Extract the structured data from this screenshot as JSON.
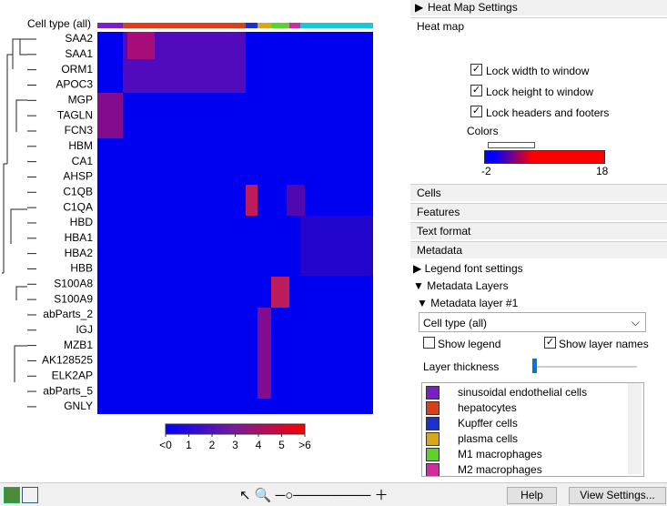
{
  "heatmap": {
    "column_header": "Cell type (all)",
    "genes": [
      "SAA2",
      "SAA1",
      "ORM1",
      "APOC3",
      "MGP",
      "TAGLN",
      "FCN3",
      "HBM",
      "CA1",
      "AHSP",
      "C1QB",
      "C1QA",
      "HBD",
      "HBA1",
      "HBA2",
      "HBB",
      "S100A8",
      "S100A9",
      "abParts_2",
      "IGJ",
      "MZB1",
      "AK128525",
      "ELK2AP",
      "abParts_5",
      "GNLY"
    ],
    "scale": {
      "lim": [
        0,
        6
      ],
      "ticks": [
        {
          "value": 0,
          "label": "<0"
        },
        1,
        2,
        3,
        4,
        5,
        {
          "value": 6,
          "label": ">6"
        }
      ]
    }
  },
  "settings": {
    "title": "Heat Map Settings",
    "heat_map": {
      "title": "Heat map",
      "options": [
        {
          "label": "Lock width to window",
          "checked": true
        },
        {
          "label": "Lock height to window",
          "checked": true
        },
        {
          "label": "Lock headers and footers",
          "checked": true
        }
      ],
      "colors_label": "Colors",
      "color_min": -2,
      "color_max": 18
    },
    "sections": [
      "Cells",
      "Features",
      "Text format"
    ],
    "metadata": {
      "title": "Metadata",
      "legend_font": "Legend font settings",
      "layers": "Metadata Layers",
      "layer": "Metadata layer #1",
      "dropdown": "Cell type (all)",
      "show_legend": {
        "label": "Show legend",
        "checked": false
      },
      "show_names": {
        "label": "Show layer names",
        "checked": true
      },
      "thickness": "Layer thickness",
      "items": [
        {
          "label": "sinusoidal endothelial cells",
          "color": "#7a1fc8"
        },
        {
          "label": "hepatocytes",
          "color": "#d8401c"
        },
        {
          "label": "Kupffer cells",
          "color": "#1c2fd0"
        },
        {
          "label": "plasma cells",
          "color": "#d8a81c"
        },
        {
          "label": "M1 macrophages",
          "color": "#5cd02c"
        },
        {
          "label": "M2 macrophages",
          "color": "#d02ca0"
        }
      ]
    },
    "buttons": [
      "Help",
      "View Settings..."
    ]
  }
}
